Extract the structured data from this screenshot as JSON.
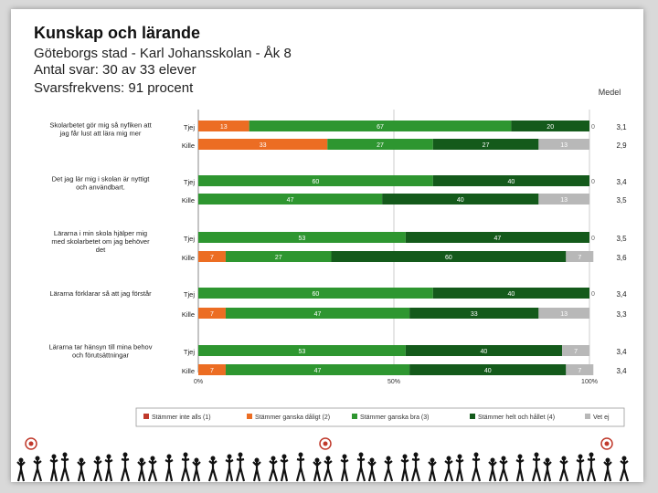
{
  "header": {
    "title": "Kunskap och lärande",
    "line1": "Göteborgs stad - Karl Johansskolan - Åk 8",
    "line2": "Antal svar: 30 av 33 elever",
    "line3": "Svarsfrekvens: 91 procent"
  },
  "chart_data": {
    "type": "bar",
    "orientation": "horizontal",
    "stacked": true,
    "mean_header": "Medel",
    "xlim": [
      0,
      100
    ],
    "x_ticks": [
      "0%",
      "50%",
      "100%"
    ],
    "questions": [
      "Skolarbetet gör mig så nyfiken att jag får lust att lära mig mer",
      "Det jag lär mig i skolan är nyttigt och användbart.",
      "Lärarna i min skola hjälper mig med skolarbetet om jag behöver det",
      "Lärarna förklarar så att jag förstår",
      "Lärarna tar hänsyn till mina behov och förutsättningar"
    ],
    "rows": [
      {
        "question": 0,
        "group": "Tjej",
        "values": [
          0,
          13,
          67,
          20,
          0
        ],
        "mean": "3,1"
      },
      {
        "question": 0,
        "group": "Kille",
        "values": [
          0,
          33,
          27,
          27,
          13
        ],
        "mean": "2,9"
      },
      {
        "question": 1,
        "group": "Tjej",
        "values": [
          0,
          0,
          60,
          40,
          0
        ],
        "mean": "3,4"
      },
      {
        "question": 1,
        "group": "Kille",
        "values": [
          0,
          0,
          47,
          40,
          13
        ],
        "mean": "3,5"
      },
      {
        "question": 2,
        "group": "Tjej",
        "values": [
          0,
          0,
          53,
          47,
          0
        ],
        "mean": "3,5"
      },
      {
        "question": 2,
        "group": "Kille",
        "values": [
          0,
          7,
          27,
          60,
          7
        ],
        "mean": "3,6"
      },
      {
        "question": 3,
        "group": "Tjej",
        "values": [
          0,
          0,
          60,
          40,
          0
        ],
        "mean": "3,4"
      },
      {
        "question": 3,
        "group": "Kille",
        "values": [
          0,
          7,
          47,
          33,
          13
        ],
        "mean": "3,3"
      },
      {
        "question": 4,
        "group": "Tjej",
        "values": [
          0,
          0,
          53,
          40,
          7
        ],
        "mean": "3,4"
      },
      {
        "question": 4,
        "group": "Kille",
        "values": [
          0,
          7,
          47,
          40,
          7
        ],
        "mean": "3,4"
      }
    ],
    "series": [
      {
        "name": "Stämmer inte alls (1)",
        "color": "#c0392b"
      },
      {
        "name": "Stämmer ganska dåligt (2)",
        "color": "#ec6d23"
      },
      {
        "name": "Stämmer ganska bra (3)",
        "color": "#2e9630"
      },
      {
        "name": "Stämmer helt och hållet (4)",
        "color": "#145a1b"
      },
      {
        "name": "Vet ej",
        "color": "#b8b8b8"
      }
    ]
  },
  "colors": {
    "footer_ground": "#111111"
  }
}
